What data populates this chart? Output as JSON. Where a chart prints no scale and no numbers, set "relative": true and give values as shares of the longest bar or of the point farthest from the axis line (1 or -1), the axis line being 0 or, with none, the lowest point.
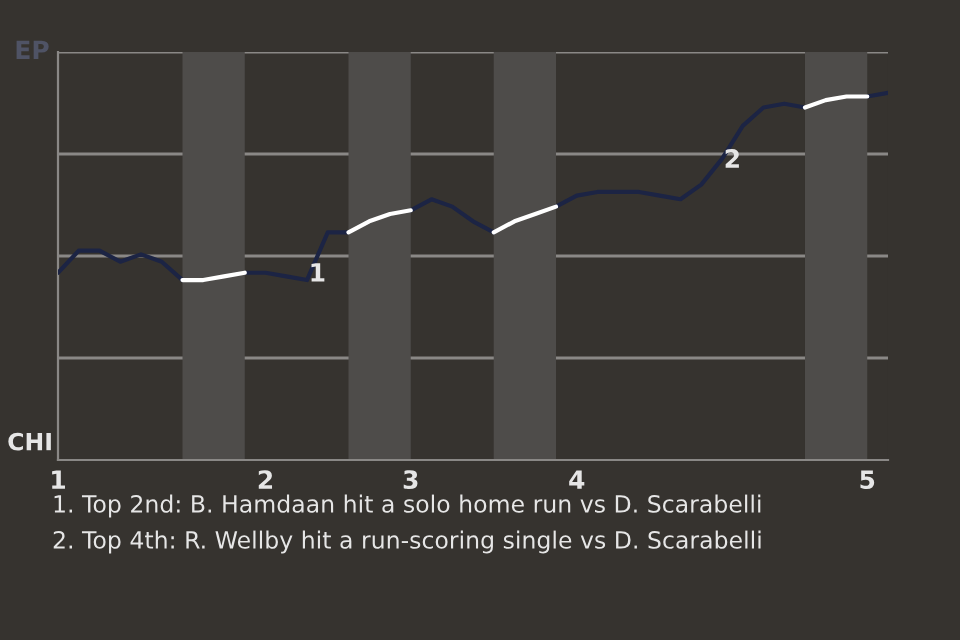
{
  "chart_data": {
    "type": "line",
    "relative": true,
    "categories": [
      "1",
      null,
      null,
      null,
      null,
      null,
      null,
      null,
      null,
      null,
      "2",
      null,
      null,
      null,
      null,
      null,
      null,
      "3",
      null,
      null,
      null,
      null,
      null,
      null,
      null,
      "4",
      null,
      null,
      null,
      null,
      null,
      null,
      null,
      null,
      null,
      null,
      null,
      null,
      null,
      "5",
      null
    ],
    "series": [
      {
        "color": "#1c2444",
        "values": [
          0.51,
          0.57,
          0.57,
          0.54,
          0.56,
          0.54,
          0.49,
          null,
          null,
          0.51,
          0.51,
          0.5,
          0.49,
          0.62,
          0.62,
          null,
          null,
          0.68,
          0.71,
          0.69,
          0.65,
          0.62,
          null,
          null,
          0.69,
          0.72,
          0.73,
          0.73,
          0.73,
          0.72,
          0.71,
          0.75,
          0.82,
          0.91,
          0.96,
          0.97,
          0.96,
          null,
          null,
          0.99,
          1
        ]
      },
      {
        "color": "#ffffff",
        "values": [
          null,
          null,
          null,
          null,
          null,
          null,
          0.49,
          0.49,
          0.5,
          0.51,
          null,
          null,
          null,
          null,
          0.62,
          0.65,
          0.67,
          0.68,
          null,
          null,
          null,
          0.62,
          0.65,
          0.67,
          0.69,
          null,
          null,
          null,
          null,
          null,
          null,
          null,
          null,
          null,
          null,
          null,
          0.96,
          0.98,
          0.99,
          0.99,
          null
        ]
      }
    ],
    "annotations": [
      "EP",
      "CHI",
      "1",
      "2",
      "1. Top 2nd: B. Hamdaan hit a solo home run vs D. Scarabelli",
      "2. Top 4th: R. Wellby hit a run-scoring single vs D. Scarabelli"
    ]
  }
}
